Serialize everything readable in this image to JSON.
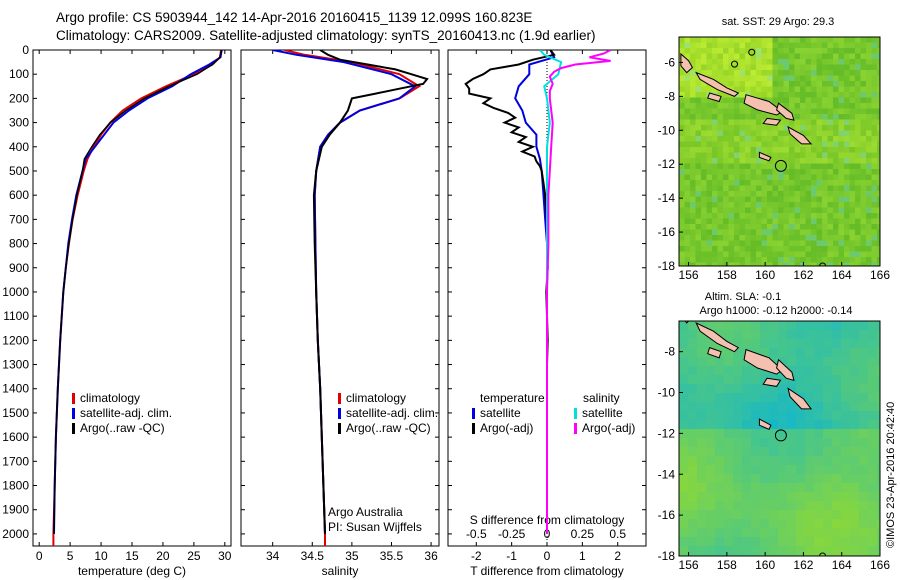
{
  "title_line1": "Argo profile: CS 5903944_142 14-Apr-2016 20160415_1139 12.099S 160.823E",
  "title_line2": "Climatology: CARS2009. Satellite-adjusted climatology: synTS_20160413.nc (1.9d earlier)",
  "side_stamp": "©IMOS 23-Apr-2016 20:42:40",
  "argo_institution": "Argo Australia",
  "argo_pi": "PI: Susan Wijffels",
  "colors": {
    "climatology": "#e00000",
    "satellite": "#0000e0",
    "argo": "#000000",
    "salinity_satellite": "#00e0e0",
    "salinity_argo": "#ff00ff",
    "land": "#f4c0b0",
    "sst_field": "#7ccc2c",
    "sla_field": "#4ccc7c"
  },
  "chart_data": [
    {
      "type": "line",
      "panel": "temperature",
      "xlabel": "temperature (deg C)",
      "ylabel": "",
      "xlim": [
        -1,
        31
      ],
      "ylim": [
        2050,
        0
      ],
      "xticks": [
        0,
        5,
        10,
        15,
        20,
        25,
        30
      ],
      "yticks": [
        0,
        100,
        200,
        300,
        400,
        500,
        600,
        700,
        800,
        900,
        1000,
        1100,
        1200,
        1300,
        1400,
        1500,
        1600,
        1700,
        1800,
        1900,
        2000
      ],
      "legend": [
        "climatology",
        "satellite-adj. clim.",
        "Argo(..raw -QC)"
      ],
      "series": [
        {
          "name": "climatology",
          "depth": [
            0,
            30,
            60,
            100,
            150,
            200,
            250,
            300,
            350,
            400,
            450,
            500,
            600,
            700,
            800,
            900,
            1000,
            1200,
            1400,
            1600,
            1800,
            2000,
            2050
          ],
          "values": [
            29.4,
            29.2,
            28,
            25,
            20.5,
            16.5,
            13.5,
            11.5,
            10,
            8.8,
            7.8,
            7.2,
            6.2,
            5.4,
            4.8,
            4.3,
            3.9,
            3.4,
            3.0,
            2.7,
            2.5,
            2.3,
            2.3
          ]
        },
        {
          "name": "satellite-adj. clim.",
          "depth": [
            0,
            30,
            60,
            100,
            150,
            200,
            250,
            300,
            350,
            400,
            450,
            500,
            600,
            700,
            800,
            900,
            1000,
            1200,
            1400,
            1600,
            1800,
            2000
          ],
          "values": [
            29.5,
            29.3,
            27.5,
            24.5,
            21.5,
            17.5,
            14.5,
            12,
            10.5,
            9,
            7.5,
            7,
            6,
            5.3,
            4.7,
            4.3,
            3.9,
            3.4,
            3.0,
            2.7,
            2.5,
            2.4
          ]
        },
        {
          "name": "Argo(..raw -QC)",
          "depth": [
            0,
            30,
            60,
            100,
            150,
            200,
            250,
            300,
            350,
            400,
            450,
            500,
            600,
            700,
            800,
            900,
            1000,
            1200,
            1400,
            1600,
            1800,
            2000
          ],
          "values": [
            29.5,
            29.2,
            28,
            25.5,
            21,
            17,
            14,
            11.5,
            9.8,
            8.5,
            7.3,
            7,
            6.1,
            5.4,
            4.8,
            4.3,
            3.9,
            3.4,
            3.0,
            2.7,
            2.5,
            2.4
          ]
        }
      ]
    },
    {
      "type": "line",
      "panel": "salinity",
      "xlabel": "salinity",
      "xlim": [
        33.6,
        36.1
      ],
      "ylim": [
        2050,
        0
      ],
      "xticks": [
        34,
        34.5,
        35,
        35.5,
        36
      ],
      "legend": [
        "climatology",
        "satellite-adj. clim.",
        "Argo(..raw -QC)"
      ],
      "series": [
        {
          "name": "climatology",
          "depth": [
            0,
            20,
            50,
            100,
            150,
            200,
            250,
            300,
            350,
            400,
            500,
            600,
            800,
            1000,
            1200,
            1400,
            1600,
            1800,
            2000,
            2050
          ],
          "values": [
            34.15,
            34.4,
            35.0,
            35.6,
            35.85,
            35.6,
            35.1,
            34.85,
            34.7,
            34.6,
            34.55,
            34.53,
            34.54,
            34.55,
            34.57,
            34.6,
            34.62,
            34.64,
            34.66,
            34.66
          ]
        },
        {
          "name": "satellite-adj. clim.",
          "depth": [
            0,
            20,
            50,
            100,
            150,
            200,
            250,
            300,
            350,
            400,
            500,
            600,
            800,
            1000,
            1200,
            1400,
            1600,
            1800,
            2000
          ],
          "values": [
            34.0,
            34.3,
            34.9,
            35.5,
            35.8,
            35.6,
            35.1,
            34.85,
            34.7,
            34.6,
            34.55,
            34.53,
            34.54,
            34.55,
            34.57,
            34.6,
            34.62,
            34.64,
            34.66
          ]
        },
        {
          "name": "Argo(..raw -QC)",
          "depth": [
            0,
            20,
            40,
            60,
            80,
            100,
            120,
            140,
            160,
            180,
            200,
            250,
            300,
            350,
            400,
            500,
            600,
            800,
            1000,
            1200,
            1400,
            1600,
            1800,
            2000
          ],
          "values": [
            34.6,
            34.7,
            34.85,
            35.2,
            35.55,
            35.75,
            35.95,
            35.9,
            35.6,
            35.3,
            35.0,
            34.95,
            34.85,
            34.72,
            34.62,
            34.55,
            34.52,
            34.53,
            34.55,
            34.57,
            34.6,
            34.62,
            34.64,
            34.66
          ]
        }
      ]
    },
    {
      "type": "line",
      "panel": "difference",
      "xlabel": "T difference from climatology",
      "top_axis_label": "S difference from climatology",
      "xlim": [
        -2.8,
        2.8
      ],
      "ylim": [
        2050,
        0
      ],
      "xticks": [
        -2,
        -1,
        0,
        1,
        2
      ],
      "top_ticks": [
        -0.5,
        -0.25,
        0,
        0.25,
        0.5
      ],
      "legend_groups": {
        "temperature": [
          "satellite",
          "Argo(-adj)"
        ],
        "salinity": [
          "satellite",
          "Argo(-adj)"
        ]
      },
      "series": [
        {
          "name": "temperature satellite",
          "depth": [
            0,
            30,
            60,
            100,
            150,
            200,
            250,
            300,
            350,
            400,
            450,
            500,
            600,
            700,
            800,
            1000,
            1500,
            2000
          ],
          "values": [
            0.1,
            0.2,
            -0.5,
            -0.5,
            -0.8,
            -0.9,
            -0.7,
            -0.6,
            -0.3,
            -0.3,
            -0.2,
            -0.15,
            -0.1,
            -0.05,
            0,
            0,
            0,
            0
          ]
        },
        {
          "name": "temperature Argo(-adj)",
          "depth": [
            0,
            20,
            40,
            60,
            80,
            100,
            120,
            140,
            160,
            180,
            200,
            220,
            240,
            260,
            280,
            300,
            320,
            340,
            360,
            380,
            400,
            420,
            440,
            460,
            480,
            500,
            550,
            600,
            700,
            800,
            900,
            1000,
            1100,
            1200,
            1300,
            1400,
            1500,
            1600,
            1700,
            1800,
            1900,
            2000
          ],
          "values": [
            0.1,
            0.2,
            -0.4,
            -0.8,
            -1.6,
            -1.8,
            -2.1,
            -2.3,
            -2.2,
            -2.2,
            -1.6,
            -1.8,
            -1.5,
            -1.1,
            -0.9,
            -1.2,
            -0.8,
            -1.0,
            -0.6,
            -0.8,
            -0.4,
            -0.7,
            -0.35,
            -0.3,
            -0.2,
            -0.15,
            -0.1,
            -0.05,
            0,
            0,
            0.02,
            -0.02,
            0,
            0.02,
            0,
            0,
            0,
            0,
            0,
            0,
            0,
            0
          ]
        },
        {
          "name": "salinity satellite",
          "depth": [
            0,
            20,
            50,
            100,
            150,
            200,
            300,
            400,
            500,
            700,
            1000,
            1500,
            2000
          ],
          "values": [
            -0.05,
            -0.02,
            0.1,
            0.08,
            -0.02,
            0.0,
            0.02,
            0.0,
            0.0,
            0.0,
            0.0,
            0.0,
            0.0
          ]
        },
        {
          "name": "salinity Argo(-adj)",
          "depth": [
            0,
            15,
            30,
            45,
            60,
            75,
            90,
            110,
            140,
            170,
            200,
            300,
            400,
            500,
            600,
            800,
            1000,
            1200,
            1500,
            2000
          ],
          "values": [
            0.45,
            0.4,
            0.3,
            0.45,
            0.2,
            0.1,
            0.05,
            0.02,
            0.04,
            0.02,
            0.02,
            0.04,
            0.03,
            0.02,
            0.01,
            0.01,
            0.0,
            0.0,
            0.0,
            0.0
          ]
        }
      ]
    },
    {
      "type": "heatmap",
      "panel": "sst_map",
      "title": "sat. SST: 29 Argo: 29.3",
      "xlim": [
        155.5,
        166
      ],
      "ylim": [
        -18,
        -4.5
      ],
      "xticks": [
        156,
        158,
        160,
        162,
        164,
        166
      ],
      "yticks": [
        -6,
        -8,
        -10,
        -12,
        -14,
        -16,
        -18
      ],
      "argo_position": {
        "lon": 160.823,
        "lat": -12.099
      }
    },
    {
      "type": "heatmap",
      "panel": "sla_map",
      "title_line1": "Altim. SLA: -0.1",
      "title_line2": "Argo h1000: -0.12 h2000: -0.14",
      "xlim": [
        155.5,
        166
      ],
      "ylim": [
        -18,
        -6.5
      ],
      "xticks": [
        156,
        158,
        160,
        162,
        164,
        166
      ],
      "yticks": [
        -8,
        -10,
        -12,
        -14,
        -16,
        -18
      ],
      "argo_position": {
        "lon": 160.823,
        "lat": -12.099
      }
    }
  ]
}
